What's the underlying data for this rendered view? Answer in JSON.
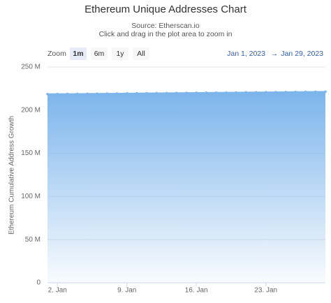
{
  "chart_data": {
    "type": "area",
    "title": "Ethereum Unique Addresses Chart",
    "subtitle": "Source: Etherscan.io",
    "subtitle_2": "Click and drag in the plot area to zoom in",
    "y_label": "Ethereum Cumulative Address Growth",
    "x": [
      "2023-01-01",
      "2023-01-02",
      "2023-01-03",
      "2023-01-04",
      "2023-01-05",
      "2023-01-06",
      "2023-01-07",
      "2023-01-08",
      "2023-01-09",
      "2023-01-10",
      "2023-01-11",
      "2023-01-12",
      "2023-01-13",
      "2023-01-14",
      "2023-01-15",
      "2023-01-16",
      "2023-01-17",
      "2023-01-18",
      "2023-01-19",
      "2023-01-20",
      "2023-01-21",
      "2023-01-22",
      "2023-01-23",
      "2023-01-24",
      "2023-01-25",
      "2023-01-26",
      "2023-01-27",
      "2023-01-28",
      "2023-01-29"
    ],
    "values": [
      218.6,
      218.7,
      218.8,
      218.9,
      219.0,
      219.1,
      219.2,
      219.3,
      219.4,
      219.5,
      219.6,
      219.7,
      219.8,
      219.9,
      220.0,
      220.1,
      220.2,
      220.3,
      220.4,
      220.5,
      220.6,
      220.7,
      220.8,
      220.9,
      221.0,
      221.1,
      221.2,
      221.3,
      221.4
    ],
    "color": "#7cb5ec",
    "xlim": [
      "2023-01-01",
      "2023-01-29"
    ],
    "xticks": [
      {
        "value": "2023-01-02",
        "label": "2. Jan"
      },
      {
        "value": "2023-01-09",
        "label": "9. Jan"
      },
      {
        "value": "2023-01-16",
        "label": "16. Jan"
      },
      {
        "value": "2023-01-23",
        "label": "23. Jan"
      }
    ],
    "ylim": [
      0,
      250
    ],
    "yticks": [
      0,
      {
        "value": 50,
        "label": "50 M"
      },
      {
        "value": 100,
        "label": "100 M"
      },
      {
        "value": 150,
        "label": "150 M"
      },
      {
        "value": 200,
        "label": "200 M"
      },
      {
        "value": 250,
        "label": "250 M"
      }
    ],
    "grid": true
  },
  "range_selector": {
    "zoom_label": "Zoom",
    "buttons": [
      "1m",
      "6m",
      "1y",
      "All"
    ],
    "selected": "1m",
    "from": "Jan 1, 2023",
    "separator": "→",
    "to": "Jan 29, 2023"
  }
}
